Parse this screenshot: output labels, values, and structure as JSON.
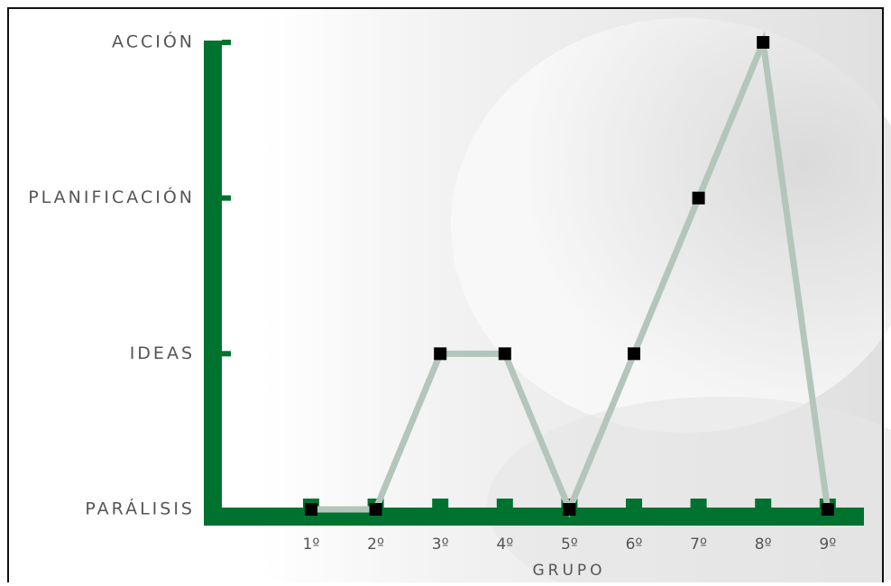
{
  "chart_data": {
    "type": "line",
    "categories": [
      "1º",
      "2º",
      "3º",
      "4º",
      "5º",
      "6º",
      "7º",
      "8º",
      "9º"
    ],
    "x_label": "GRUPO",
    "series": [
      {
        "color": "#b3c6bc",
        "values": [
          0,
          0,
          1,
          1,
          0,
          1,
          2,
          3,
          0
        ]
      }
    ],
    "ylim": [
      0,
      3
    ],
    "yticks": [
      {
        "value": 0,
        "label": "PARÁLISIS"
      },
      {
        "value": 1,
        "label": "IDEAS"
      },
      {
        "value": 2,
        "label": "PLANIFICACIÓN"
      },
      {
        "value": 3,
        "label": "ACCIÓN"
      }
    ],
    "axis_color": "#00722f"
  }
}
